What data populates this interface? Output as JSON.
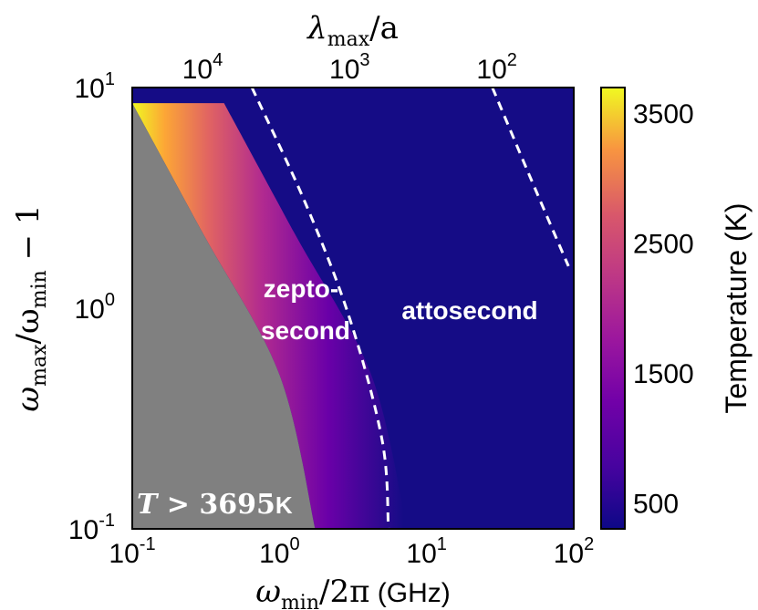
{
  "chart_data": {
    "type": "heatmap",
    "x_axis": {
      "label_main": "ω",
      "label_sub": "min",
      "label_tail": "/2π",
      "label_unit": " (GHz)",
      "scale": "log",
      "range": [
        0.1,
        100
      ],
      "ticks": [
        {
          "base": "10",
          "exp": "-1"
        },
        {
          "base": "10",
          "exp": "0"
        },
        {
          "base": "10",
          "exp": "1"
        },
        {
          "base": "10",
          "exp": "2"
        }
      ]
    },
    "top_axis": {
      "label_main": "λ",
      "label_sub": "max",
      "label_tail": "/a",
      "ticks": [
        {
          "base": "10",
          "exp": "4",
          "at_omega_min": 0.3
        },
        {
          "base": "10",
          "exp": "3",
          "at_omega_min": 3
        },
        {
          "base": "10",
          "exp": "2",
          "at_omega_min": 30
        }
      ]
    },
    "y_axis": {
      "label_main": "ω",
      "label_sub1": "max",
      "label_mid": "/ω",
      "label_sub2": "min",
      "label_tail": " − 1",
      "scale": "log",
      "range": [
        0.1,
        10
      ],
      "ticks": [
        {
          "base": "10",
          "exp": "-1"
        },
        {
          "base": "10",
          "exp": "0"
        },
        {
          "base": "10",
          "exp": "1"
        }
      ]
    },
    "colorbar": {
      "label": "Temperature (K)",
      "range": [
        300,
        3695
      ],
      "ticks": [
        "500",
        "1500",
        "2500",
        "3500"
      ],
      "tick_values": [
        500,
        1500,
        2500,
        3500
      ],
      "colormap": "plasma"
    },
    "boundary": {
      "description": "excluded region boundary (T > 3695 K)",
      "points": [
        [
          0.1,
          8.5
        ],
        [
          0.3,
          2.2
        ],
        [
          1.0,
          0.5
        ],
        [
          1.75,
          0.1
        ]
      ]
    },
    "contours": [
      {
        "name": "zeptosecond/attosecond boundary",
        "points": [
          [
            0.65,
            10
          ],
          [
            1.5,
            3
          ],
          [
            3.0,
            0.9
          ],
          [
            5.0,
            0.25
          ],
          [
            5.5,
            0.1
          ]
        ]
      },
      {
        "name": "upper attosecond boundary",
        "points": [
          [
            28,
            10
          ],
          [
            50,
            4
          ],
          [
            92,
            1.55
          ]
        ]
      }
    ],
    "regions": [
      {
        "line1": "zepto-",
        "line2": "second",
        "at": [
          1.9,
          0.85
        ]
      },
      {
        "line1": "attosecond",
        "at": [
          12,
          0.98
        ]
      }
    ],
    "annotation": {
      "var": "T",
      "op": " > ",
      "value": "3695",
      "unit": "K"
    },
    "colors": {
      "excluded": "#808080",
      "background_deep": "#150c86",
      "dashed": "#ffffff"
    }
  }
}
